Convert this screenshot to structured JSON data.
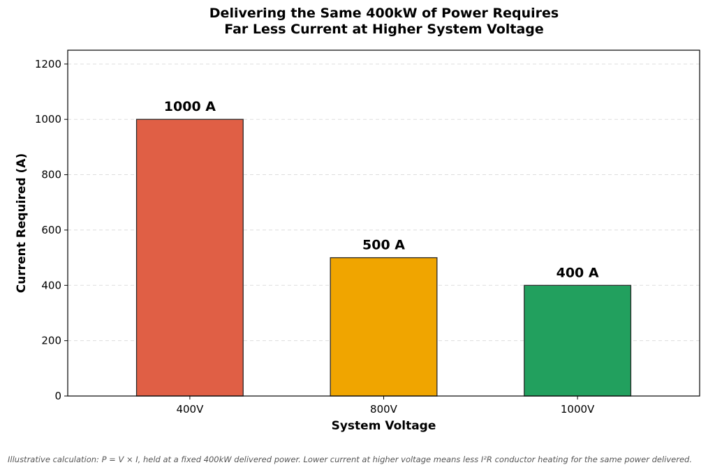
{
  "chart_data": {
    "type": "bar",
    "title_lines": [
      "Delivering the Same 400kW of Power Requires",
      "Far Less Current at Higher System Voltage"
    ],
    "categories": [
      "400V",
      "800V",
      "1000V"
    ],
    "values": [
      1000,
      500,
      400
    ],
    "data_labels": [
      "1000 A",
      "500 A",
      "400 A"
    ],
    "bar_colors": [
      "#e05f45",
      "#f0a500",
      "#22a05e"
    ],
    "xlabel": "System Voltage",
    "ylabel": "Current Required (A)",
    "ylim": [
      0,
      1250
    ],
    "yticks": [
      0,
      200,
      400,
      600,
      800,
      1000,
      1200
    ],
    "grid": "horizontal dashed",
    "legend": "none"
  },
  "footnote": "Illustrative calculation: P = V × I, held at a fixed 400kW delivered power. Lower current at higher voltage means less I²R conductor heating for the same power delivered."
}
